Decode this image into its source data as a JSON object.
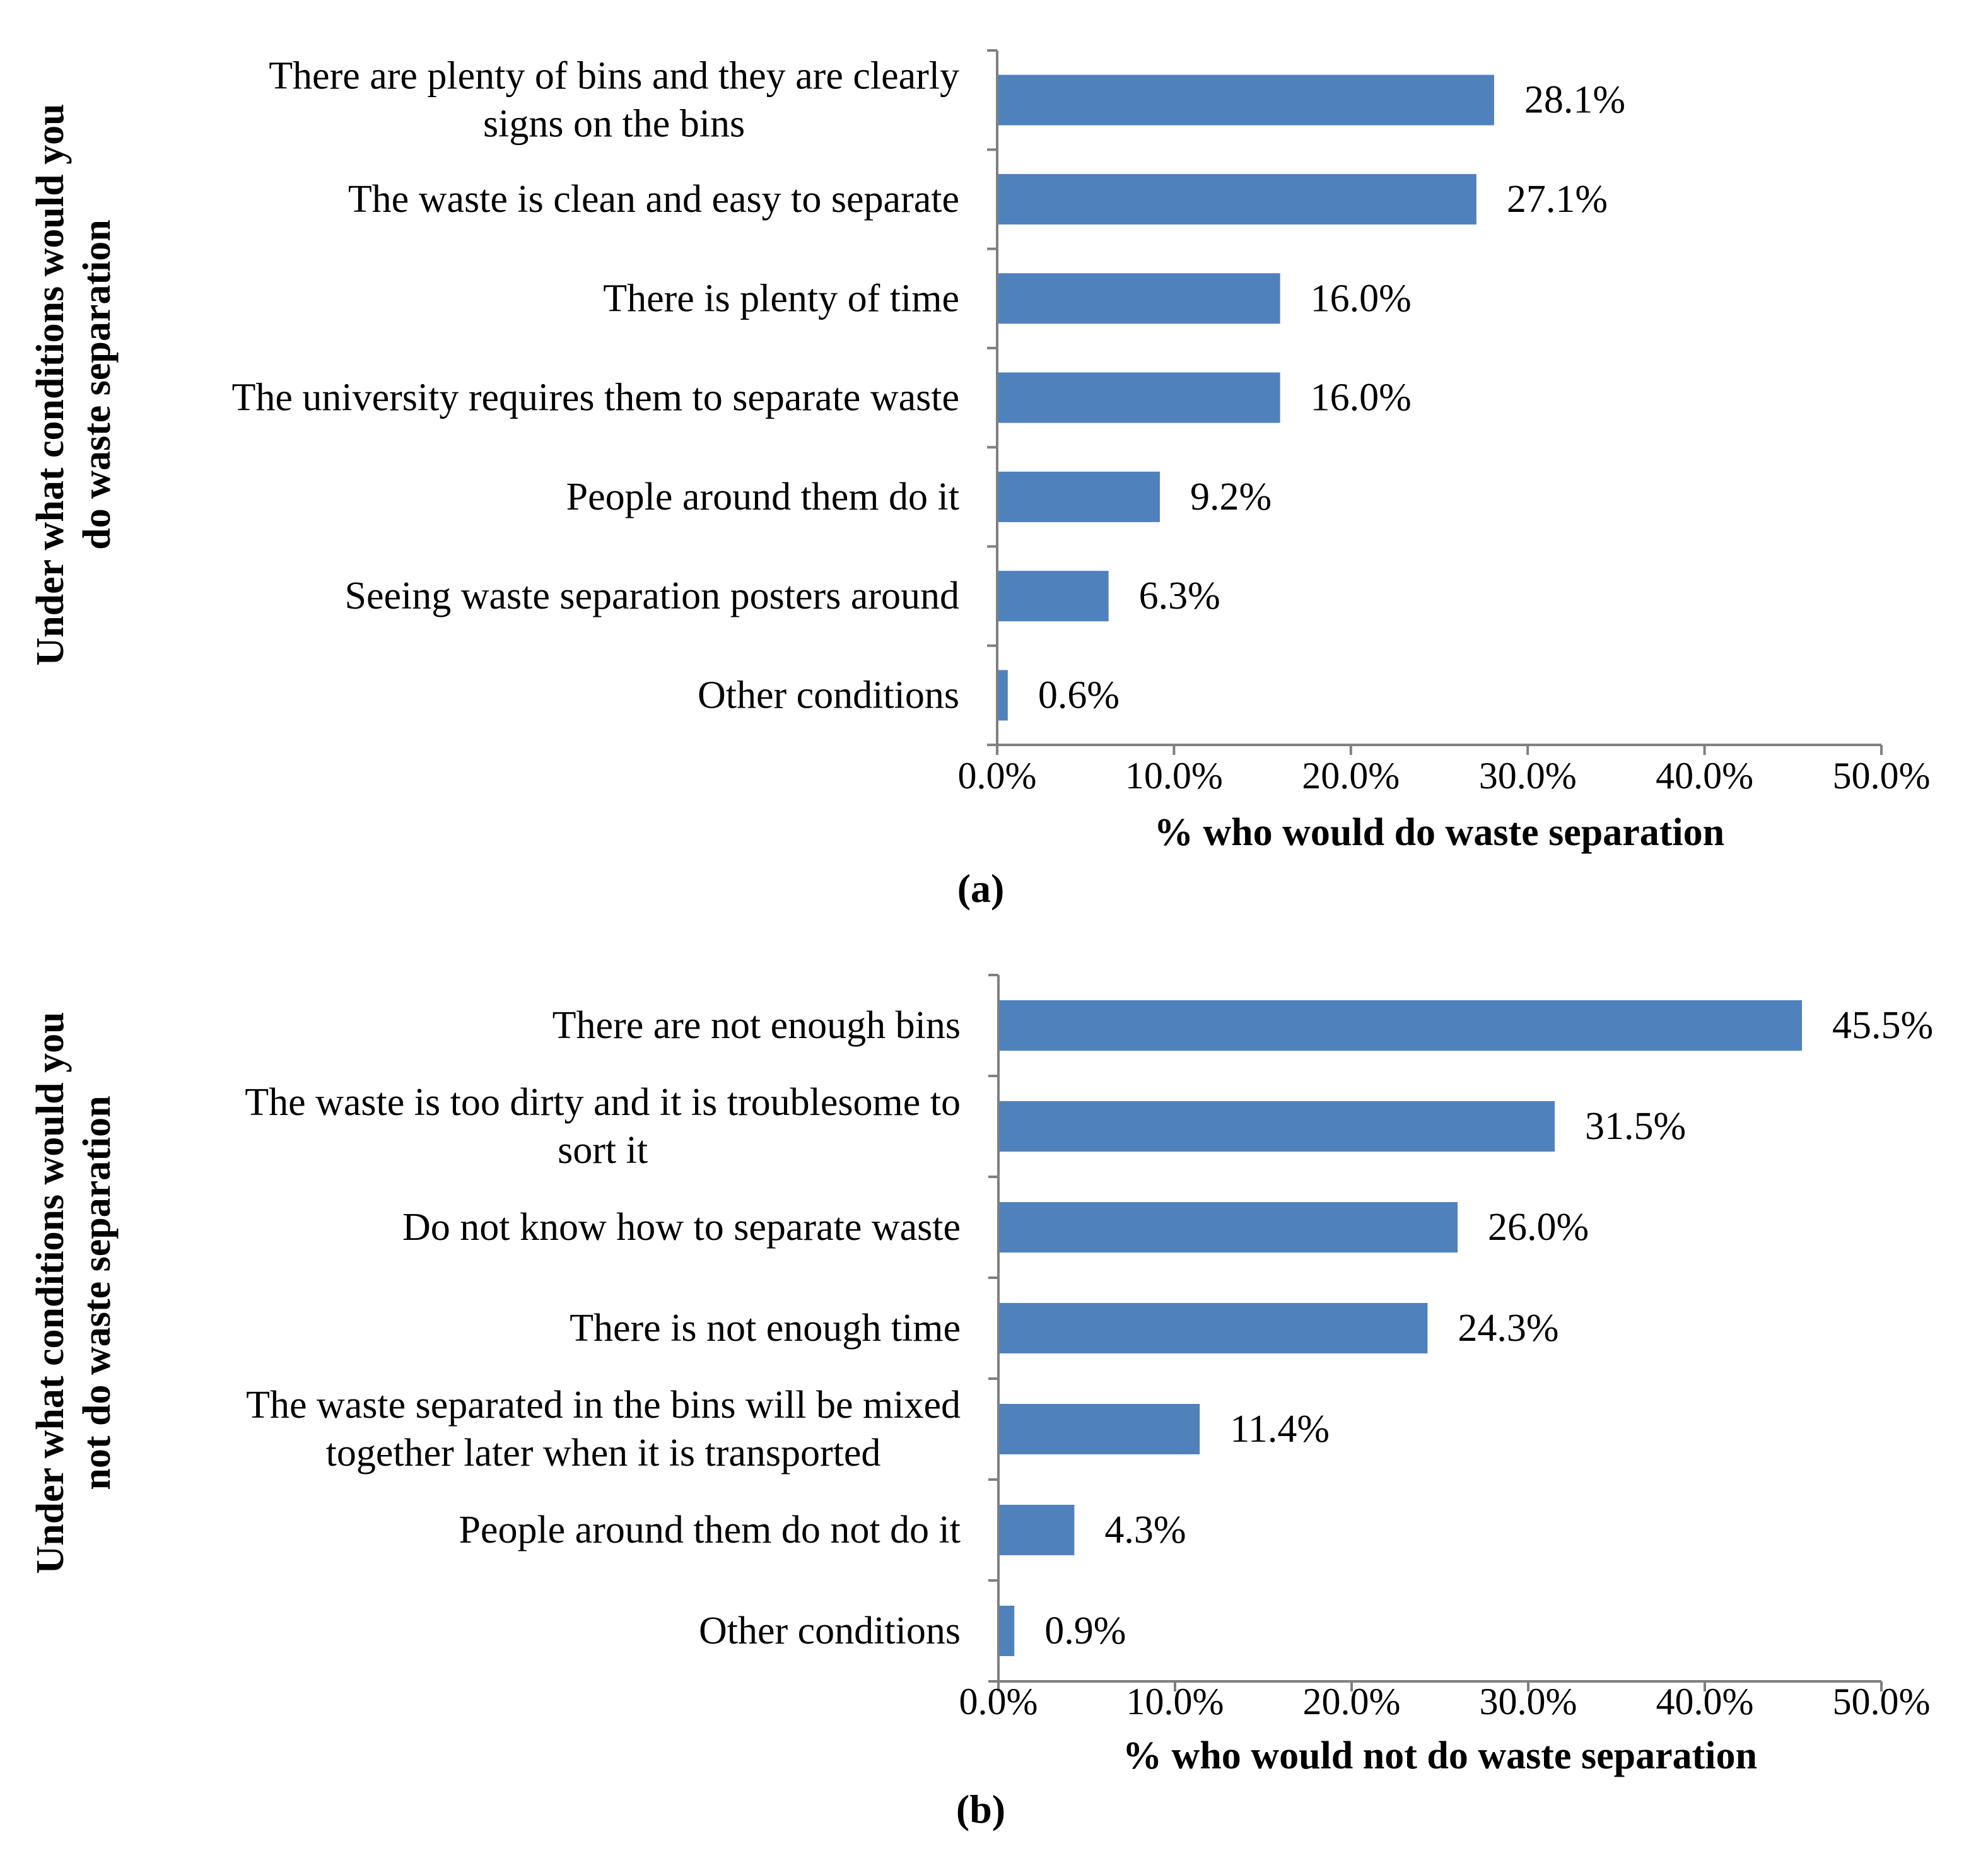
{
  "chart_data": [
    {
      "type": "bar",
      "orientation": "horizontal",
      "caption": "(a)",
      "categories": [
        "There are plenty of bins and they are clearly signs on the bins",
        "The waste is clean and easy to separate",
        "There is plenty of time",
        "The university requires them to separate waste",
        "People around them do it",
        "Seeing waste separation posters around",
        "Other conditions"
      ],
      "category_lines": [
        [
          "There are plenty of bins and they are clearly",
          "signs on the bins"
        ],
        [
          "The waste is clean and easy to separate"
        ],
        [
          "There is plenty of time"
        ],
        [
          "The university requires them to separate waste"
        ],
        [
          "People around them do it"
        ],
        [
          "Seeing waste separation posters around"
        ],
        [
          "Other conditions"
        ]
      ],
      "values": [
        28.1,
        27.1,
        16.0,
        16.0,
        9.2,
        6.3,
        0.6
      ],
      "value_labels": [
        "28.1%",
        "27.1%",
        "16.0%",
        "16.0%",
        "9.2%",
        "6.3%",
        "0.6%"
      ],
      "xlabel": "% who would do waste separation",
      "ylabel_lines": [
        "Under what conditions would you",
        "do waste separation"
      ],
      "xlim": [
        0,
        50
      ],
      "x_ticks": [
        0,
        10,
        20,
        30,
        40,
        50
      ],
      "x_tick_labels": [
        "0.0%",
        "10.0%",
        "20.0%",
        "30.0%",
        "40.0%",
        "50.0%"
      ],
      "bar_color": "#4f81bd",
      "grid": false
    },
    {
      "type": "bar",
      "orientation": "horizontal",
      "caption": "(b)",
      "categories": [
        "There are not enough bins",
        "The waste is too dirty and it is troublesome to sort it",
        "Do not know how to separate waste",
        "There is not enough time",
        "The waste separated in the bins will be mixed together later when it is transported",
        "People around them do not do it",
        "Other conditions"
      ],
      "category_lines": [
        [
          "There are not enough bins"
        ],
        [
          "The waste is too dirty and it is troublesome to",
          "sort it"
        ],
        [
          "Do not know how to separate waste"
        ],
        [
          "There is not enough time"
        ],
        [
          "The waste separated in the bins will be mixed",
          "together later when it is transported"
        ],
        [
          "People around them do not do it"
        ],
        [
          "Other conditions"
        ]
      ],
      "values": [
        45.5,
        31.5,
        26.0,
        24.3,
        11.4,
        4.3,
        0.9
      ],
      "value_labels": [
        "45.5%",
        "31.5%",
        "26.0%",
        "24.3%",
        "11.4%",
        "4.3%",
        "0.9%"
      ],
      "xlabel": "% who would not do waste separation",
      "ylabel_lines": [
        "Under what conditions would you",
        "not do waste separation"
      ],
      "xlim": [
        0,
        50
      ],
      "x_ticks": [
        0,
        10,
        20,
        30,
        40,
        50
      ],
      "x_tick_labels": [
        "0.0%",
        "10.0%",
        "20.0%",
        "30.0%",
        "40.0%",
        "50.0%"
      ],
      "bar_color": "#4f81bd",
      "grid": false
    }
  ]
}
